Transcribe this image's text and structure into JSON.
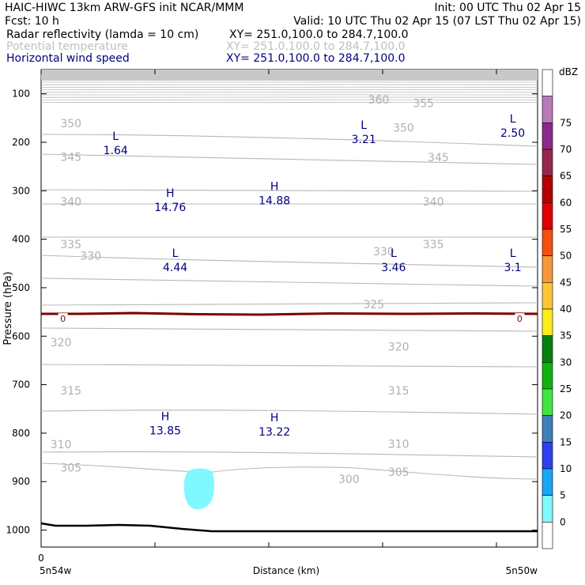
{
  "header": {
    "left1": "HAIC-HIWC 13km ARW-GFS init   NCAR/MMM",
    "right1": "Init: 00 UTC Thu 02 Apr 15",
    "left2": "Fcst:    10 h",
    "right2": "Valid: 10 UTC Thu 02 Apr 15 (07 LST Thu 02 Apr 15)",
    "field1_name": "Radar reflectivity (lamda = 10 cm)",
    "field1_xy": "XY=  251.0,100.0 to 284.7,100.0",
    "field2_name": "Potential temperature",
    "field2_xy": "XY=  251.0,100.0 to 284.7,100.0",
    "field3_name": "Horizontal wind speed",
    "field3_xy": "XY=  251.0,100.0 to 284.7,100.0"
  },
  "colors": {
    "field1": "#000000",
    "field2": "#c0c0c0",
    "field3": "#000080",
    "theta_contour": "#b8b8b8",
    "zero_contour": "#7a0000",
    "terrain": "#000000",
    "radar_echo": "#7ff8ff"
  },
  "chart_data": {
    "type": "cross-section",
    "xlabel": "Distance (km)",
    "ylabel": "Pressure (hPa)",
    "x_start_label": "5n54w",
    "x_end_label": "5n50w",
    "x_zero_label": "0",
    "y_ticks": [
      100,
      200,
      300,
      400,
      500,
      600,
      700,
      800,
      900,
      1000
    ],
    "ylim": [
      1035,
      50
    ],
    "theta_labels": [
      {
        "text": "360",
        "x": 0.68,
        "p": 112
      },
      {
        "text": "355",
        "x": 0.77,
        "p": 119
      },
      {
        "text": "350",
        "x": 0.06,
        "p": 161
      },
      {
        "text": "350",
        "x": 0.73,
        "p": 170
      },
      {
        "text": "345",
        "x": 0.06,
        "p": 230
      },
      {
        "text": "345",
        "x": 0.8,
        "p": 231
      },
      {
        "text": "340",
        "x": 0.06,
        "p": 322
      },
      {
        "text": "340",
        "x": 0.79,
        "p": 322
      },
      {
        "text": "335",
        "x": 0.06,
        "p": 410
      },
      {
        "text": "335",
        "x": 0.79,
        "p": 410
      },
      {
        "text": "330",
        "x": 0.1,
        "p": 434
      },
      {
        "text": "330",
        "x": 0.69,
        "p": 425
      },
      {
        "text": "325",
        "x": 0.67,
        "p": 534
      },
      {
        "text": "320",
        "x": 0.04,
        "p": 613
      },
      {
        "text": "320",
        "x": 0.72,
        "p": 622
      },
      {
        "text": "315",
        "x": 0.06,
        "p": 712
      },
      {
        "text": "315",
        "x": 0.72,
        "p": 712
      },
      {
        "text": "310",
        "x": 0.04,
        "p": 823
      },
      {
        "text": "310",
        "x": 0.72,
        "p": 822
      },
      {
        "text": "305",
        "x": 0.06,
        "p": 871
      },
      {
        "text": "305",
        "x": 0.72,
        "p": 880
      },
      {
        "text": "300",
        "x": 0.62,
        "p": 895
      }
    ],
    "zero_labels": [
      {
        "text": "0",
        "x": 0.044,
        "p": 564
      },
      {
        "text": "0",
        "x": 0.964,
        "p": 564
      }
    ],
    "wind_extrema": [
      {
        "type": "L",
        "value": "1.64",
        "x": 0.15,
        "p": 215
      },
      {
        "type": "H",
        "value": "14.76",
        "x": 0.26,
        "p": 332
      },
      {
        "type": "H",
        "value": "14.88",
        "x": 0.47,
        "p": 318
      },
      {
        "type": "L",
        "value": "3.21",
        "x": 0.65,
        "p": 192
      },
      {
        "type": "L",
        "value": "2.50",
        "x": 0.95,
        "p": 179
      },
      {
        "type": "L",
        "value": "4.44",
        "x": 0.27,
        "p": 456
      },
      {
        "type": "L",
        "value": "3.46",
        "x": 0.71,
        "p": 456
      },
      {
        "type": "L",
        "value": "3.1",
        "x": 0.95,
        "p": 456
      },
      {
        "type": "H",
        "value": "13.85",
        "x": 0.25,
        "p": 793
      },
      {
        "type": "H",
        "value": "13.22",
        "x": 0.47,
        "p": 795
      }
    ],
    "colorbar": {
      "title": "dBZ",
      "levels": [
        0,
        5,
        10,
        15,
        20,
        25,
        30,
        35,
        40,
        45,
        50,
        55,
        60,
        65,
        70,
        75
      ],
      "colors": [
        "#ffffff",
        "#7ff8ff",
        "#1aa6f5",
        "#2e3ff0",
        "#3d7fb9",
        "#40e640",
        "#0fb30f",
        "#07800f",
        "#ffeb1a",
        "#fcc538",
        "#f8963c",
        "#f44f0f",
        "#de0000",
        "#b40000",
        "#94284a",
        "#8b2a8b",
        "#b97ab9",
        "#ffffff"
      ]
    }
  }
}
